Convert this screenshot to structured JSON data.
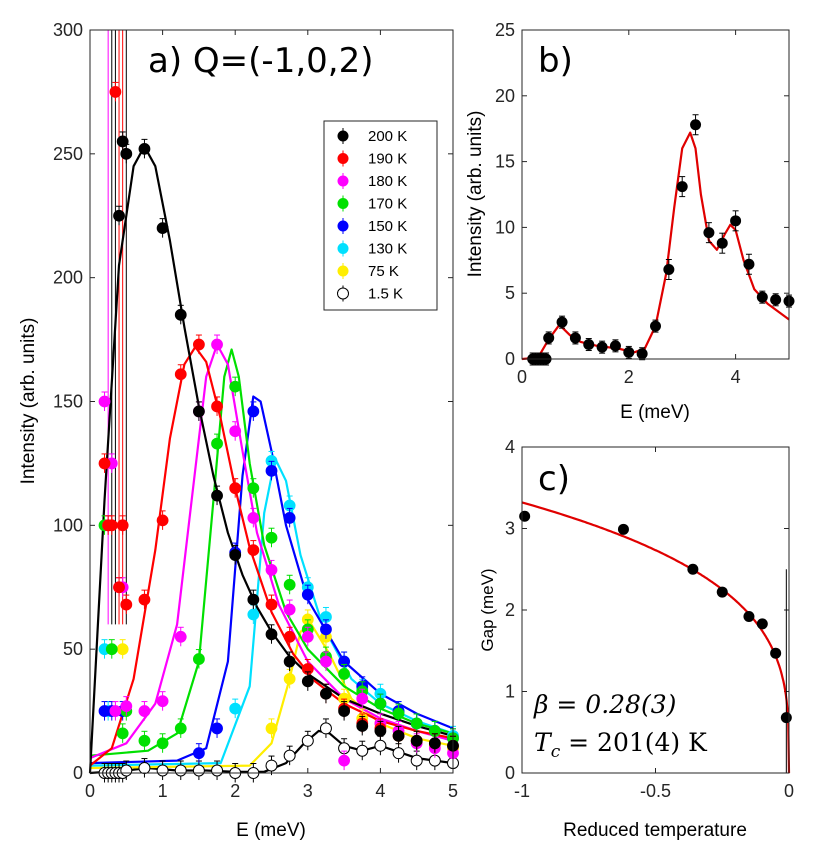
{
  "chart_data": [
    {
      "panel": "a",
      "type": "scatter",
      "title": "a) Q=(-1,0,2)",
      "xlabel": "E (meV)",
      "ylabel": "Intensity (arb. units)",
      "xlim": [
        0,
        5
      ],
      "ylim": [
        0,
        300
      ],
      "xticks": [
        "0",
        "1",
        "2",
        "3",
        "4",
        "5"
      ],
      "yticks": [
        "0",
        "50",
        "100",
        "150",
        "200",
        "250",
        "300"
      ],
      "legend_position": "top-right",
      "series": [
        {
          "name": "200 K",
          "color": "#000000",
          "filled": true,
          "x": [
            0.4,
            0.45,
            0.5,
            0.75,
            1.0,
            1.25,
            1.5,
            1.75,
            2.0,
            2.25,
            2.5,
            2.75,
            3.0,
            3.25,
            3.5,
            3.75,
            4.0,
            4.25,
            4.5,
            4.75,
            5.0
          ],
          "y": [
            225,
            255,
            250,
            252,
            220,
            185,
            146,
            112,
            88,
            70,
            56,
            45,
            37,
            32,
            25,
            19,
            17,
            15,
            13,
            12,
            11
          ],
          "fit_x": [
            0,
            0.2,
            0.4,
            0.6,
            0.75,
            0.9,
            1.1,
            1.3,
            1.5,
            1.7,
            1.9,
            2.1,
            2.3,
            2.5,
            2.75,
            3.0,
            3.5,
            4.0,
            4.5,
            5.0
          ],
          "fit_y": [
            0,
            110,
            205,
            245,
            253,
            245,
            215,
            180,
            148,
            120,
            97,
            80,
            67,
            57,
            47,
            40,
            30,
            24,
            19,
            15
          ]
        },
        {
          "name": "190 K",
          "color": "#ff0000",
          "filled": true,
          "x": [
            0.2,
            0.25,
            0.3,
            0.35,
            0.4,
            0.45,
            0.5,
            0.75,
            1.0,
            1.25,
            1.5,
            1.75,
            2.0,
            2.25,
            2.5,
            2.75,
            3.0,
            3.25,
            3.5,
            3.75,
            4.0,
            4.25,
            4.5,
            4.75,
            5.0
          ],
          "y": [
            125,
            100,
            100,
            275,
            75,
            100,
            68,
            70,
            102,
            161,
            173,
            148,
            115,
            90,
            68,
            55,
            42,
            32,
            26,
            20,
            18,
            15,
            13,
            12,
            11
          ],
          "fit_x": [
            0,
            0.3,
            0.6,
            0.9,
            1.1,
            1.3,
            1.45,
            1.6,
            1.8,
            2.0,
            2.2,
            2.5,
            2.8,
            3.1,
            3.5,
            4.0,
            4.5,
            5.0
          ],
          "fit_y": [
            3,
            10,
            38,
            90,
            135,
            165,
            172,
            166,
            143,
            115,
            91,
            65,
            48,
            37,
            28,
            21,
            17,
            14
          ]
        },
        {
          "name": "180 K",
          "color": "#ff00ff",
          "filled": true,
          "x": [
            0.2,
            0.25,
            0.3,
            0.35,
            0.4,
            0.45,
            0.5,
            0.75,
            1.0,
            1.25,
            1.5,
            1.75,
            2.0,
            2.25,
            2.5,
            2.75,
            3.0,
            3.25,
            3.5,
            3.75,
            4.0,
            4.25,
            4.5,
            4.75,
            5.0
          ],
          "y": [
            150,
            100,
            125,
            25,
            75,
            75,
            27,
            25,
            29,
            55,
            146,
            173,
            138,
            103,
            82,
            66,
            55,
            45,
            5,
            30,
            20,
            17,
            12,
            10,
            8
          ],
          "fit_x": [
            0,
            0.5,
            0.9,
            1.2,
            1.4,
            1.6,
            1.75,
            1.9,
            2.1,
            2.3,
            2.6,
            3.0,
            3.5,
            4.0,
            4.5,
            5.0
          ],
          "fit_y": [
            6,
            12,
            28,
            60,
            110,
            160,
            173,
            165,
            130,
            97,
            68,
            45,
            30,
            22,
            17,
            13
          ]
        },
        {
          "name": "170 K",
          "color": "#00e000",
          "filled": true,
          "x": [
            0.2,
            0.3,
            0.45,
            0.5,
            0.75,
            1.0,
            1.25,
            1.5,
            1.75,
            2.0,
            2.25,
            2.5,
            2.75,
            3.0,
            3.25,
            3.5,
            3.75,
            4.0,
            4.25,
            4.5,
            4.75,
            5.0
          ],
          "y": [
            100,
            50,
            16,
            25,
            13,
            12,
            18,
            46,
            133,
            156,
            115,
            95,
            76,
            58,
            47,
            40,
            33,
            28,
            24,
            20,
            17,
            14
          ],
          "fit_x": [
            0,
            0.8,
            1.2,
            1.5,
            1.7,
            1.85,
            1.95,
            2.05,
            2.2,
            2.4,
            2.7,
            3.0,
            3.5,
            4.0,
            4.5,
            5.0
          ],
          "fit_y": [
            7,
            9,
            16,
            45,
            110,
            160,
            171,
            160,
            125,
            92,
            65,
            50,
            35,
            26,
            20,
            16
          ]
        },
        {
          "name": "150 K",
          "color": "#0000ff",
          "filled": true,
          "x": [
            0.2,
            0.3,
            0.45,
            1.5,
            1.75,
            2.0,
            2.25,
            2.5,
            2.75,
            3.0,
            3.25,
            3.5,
            3.75,
            4.0,
            4.25,
            4.5,
            4.75,
            5.0
          ],
          "y": [
            25,
            25,
            25,
            8,
            18,
            89,
            146,
            122,
            103,
            72,
            58,
            45,
            35,
            28,
            25,
            20,
            17,
            14
          ],
          "fit_x": [
            0,
            1.2,
            1.6,
            1.9,
            2.1,
            2.25,
            2.35,
            2.5,
            2.7,
            3.0,
            3.5,
            4.0,
            4.5,
            5.0
          ],
          "fit_y": [
            4,
            5,
            10,
            45,
            120,
            152,
            150,
            130,
            100,
            70,
            45,
            32,
            24,
            18
          ]
        },
        {
          "name": "130 K",
          "color": "#00e0ff",
          "filled": true,
          "x": [
            0.2,
            0.25,
            2.0,
            2.25,
            2.5,
            2.75,
            3.0,
            3.25,
            3.5,
            3.75,
            4.0,
            4.25,
            4.5,
            4.75,
            5.0
          ],
          "y": [
            50,
            25,
            26,
            64,
            126,
            108,
            75,
            63,
            45,
            34,
            32,
            25,
            20,
            17,
            15
          ],
          "fit_x": [
            0,
            1.8,
            2.2,
            2.4,
            2.55,
            2.7,
            2.9,
            3.2,
            3.6,
            4.0,
            4.5,
            5.0
          ],
          "fit_y": [
            3,
            4,
            35,
            105,
            127,
            118,
            88,
            60,
            38,
            28,
            21,
            16
          ]
        },
        {
          "name": "75 K",
          "color": "#ffee00",
          "filled": true,
          "x": [
            0.45,
            2.5,
            2.75,
            3.0,
            3.25,
            3.5,
            3.75,
            4.0,
            4.25,
            4.5,
            4.75,
            5.0
          ],
          "y": [
            50,
            18,
            38,
            62,
            55,
            30,
            22,
            20,
            15,
            13,
            11,
            10
          ],
          "fit_x": [
            0,
            2.2,
            2.5,
            2.75,
            2.9,
            3.05,
            3.3,
            3.6,
            4.0,
            4.5,
            5.0
          ],
          "fit_y": [
            2,
            3,
            12,
            38,
            57,
            60,
            48,
            30,
            20,
            14,
            11
          ]
        },
        {
          "name": "1.5 K",
          "color": "#000000",
          "filled": false,
          "x": [
            0.2,
            0.25,
            0.3,
            0.35,
            0.4,
            0.45,
            0.5,
            0.75,
            1.0,
            1.25,
            1.5,
            1.75,
            2.0,
            2.25,
            2.5,
            2.75,
            3.0,
            3.25,
            3.5,
            3.75,
            4.0,
            4.25,
            4.5,
            4.75,
            5.0
          ],
          "y": [
            0,
            0,
            0,
            0,
            0,
            0,
            1,
            2,
            1,
            1,
            1,
            1,
            0,
            0,
            3,
            7,
            13,
            18,
            10,
            9,
            11,
            8,
            5,
            5,
            4
          ],
          "fit_x": [
            0,
            0.5,
            0.8,
            1.2,
            1.6,
            2.0,
            2.4,
            2.7,
            2.95,
            3.15,
            3.3,
            3.5,
            3.75,
            4.0,
            4.2,
            4.5,
            5.0
          ],
          "fit_y": [
            0,
            1,
            2,
            1,
            1,
            0.5,
            0.5,
            4,
            12,
            17,
            16,
            11,
            9,
            11,
            9,
            6,
            4
          ]
        }
      ]
    },
    {
      "panel": "b",
      "type": "scatter",
      "title": "b)",
      "xlabel": "E (meV)",
      "ylabel": "Intensity (arb. units)",
      "xlim": [
        0,
        5
      ],
      "ylim": [
        0,
        25
      ],
      "xticks": [
        "0",
        "2",
        "4"
      ],
      "yticks": [
        "0",
        "5",
        "10",
        "15",
        "20",
        "25"
      ],
      "points": {
        "x": [
          0.2,
          0.25,
          0.3,
          0.35,
          0.4,
          0.45,
          0.5,
          0.75,
          1.0,
          1.25,
          1.5,
          1.75,
          2.0,
          2.25,
          2.5,
          2.75,
          3.0,
          3.25,
          3.5,
          3.75,
          4.0,
          4.25,
          4.5,
          4.75,
          5.0
        ],
        "y": [
          0,
          0,
          0,
          0,
          0,
          0,
          1.6,
          2.8,
          1.6,
          1.1,
          0.9,
          1.0,
          0.5,
          0.4,
          2.5,
          6.8,
          13.1,
          17.8,
          9.6,
          8.8,
          10.5,
          7.2,
          4.7,
          4.5,
          4.4
        ]
      },
      "fit_color": "#e00000",
      "fit": {
        "x": [
          0,
          0.3,
          0.5,
          0.7,
          0.9,
          1.1,
          1.4,
          1.8,
          2.1,
          2.3,
          2.5,
          2.7,
          2.85,
          3.0,
          3.15,
          3.25,
          3.35,
          3.5,
          3.65,
          3.8,
          3.9,
          4.0,
          4.15,
          4.35,
          4.6,
          5.0
        ],
        "y": [
          0,
          0.1,
          1.5,
          2.6,
          1.8,
          1.3,
          1.0,
          0.8,
          0.5,
          0.8,
          2.5,
          6.5,
          11.5,
          16.0,
          17.2,
          16.0,
          12.5,
          9.0,
          8.3,
          9.5,
          10.2,
          9.8,
          7.5,
          5.3,
          4.2,
          3.0
        ]
      }
    },
    {
      "panel": "c",
      "type": "scatter",
      "title": "c)",
      "xlabel": "Reduced temperature",
      "ylabel": "Gap (meV)",
      "xlim": [
        -1,
        0
      ],
      "ylim": [
        0,
        4
      ],
      "xticks": [
        "-1",
        "-0.5",
        "0"
      ],
      "yticks": [
        "0",
        "1",
        "2",
        "3",
        "4"
      ],
      "points": {
        "x": [
          -0.99,
          -0.62,
          -0.36,
          -0.25,
          -0.15,
          -0.1,
          -0.05,
          -0.01
        ],
        "y": [
          3.15,
          2.99,
          2.5,
          2.22,
          1.92,
          1.83,
          1.47,
          0.68
        ]
      },
      "fit_color": "#e00000",
      "fit_params": {
        "amplitude_meV": 3.32,
        "beta": 0.28
      },
      "annotations": [
        "β = 0.28(3)",
        "T",
        "c",
        " = 201(4) K"
      ]
    }
  ]
}
